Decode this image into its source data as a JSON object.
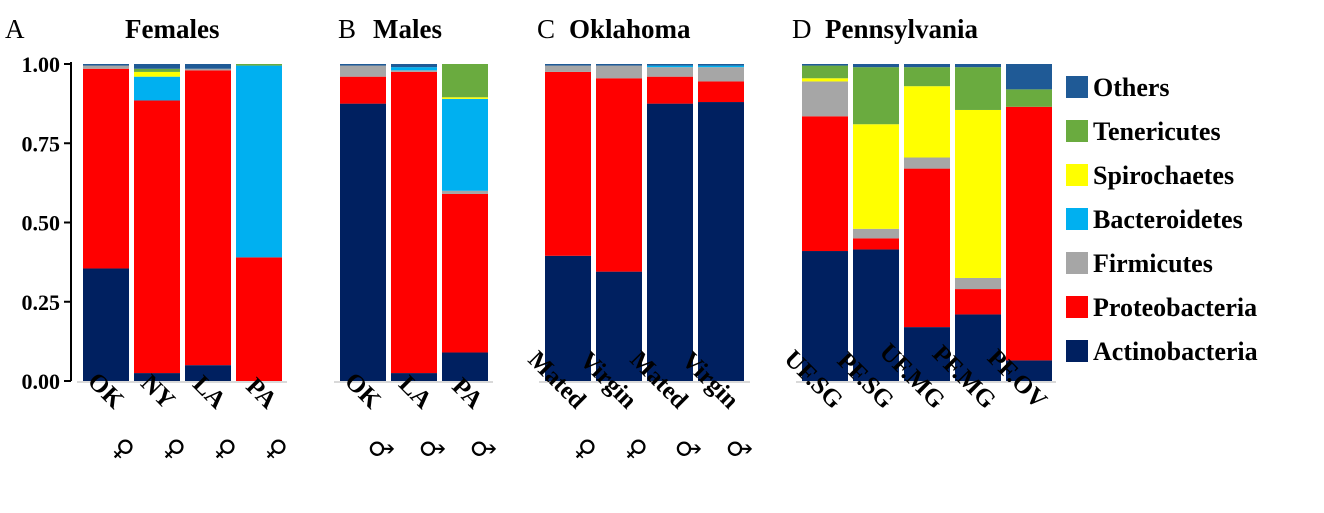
{
  "chart_data": {
    "type": "bar",
    "stacked": true,
    "ylim": [
      0,
      1
    ],
    "yticks": [
      "0.00",
      "0.25",
      "0.50",
      "0.75",
      "1.00"
    ],
    "legend_position": "right",
    "series": [
      {
        "name": "Others",
        "color": "#1f5a96"
      },
      {
        "name": "Tenericutes",
        "color": "#6aab3f"
      },
      {
        "name": "Spirochaetes",
        "color": "#ffff00"
      },
      {
        "name": "Bacteroidetes",
        "color": "#00b0f0"
      },
      {
        "name": "Firmicutes",
        "color": "#a6a6a6"
      },
      {
        "name": "Proteobacteria",
        "color": "#ff0000"
      },
      {
        "name": "Actinobacteria",
        "color": "#002060"
      }
    ],
    "stack_order": [
      "Actinobacteria",
      "Proteobacteria",
      "Firmicutes",
      "Bacteroidetes",
      "Spirochaetes",
      "Tenericutes",
      "Others"
    ],
    "panels": [
      {
        "letter": "A",
        "title": "Females",
        "bars": [
          {
            "label": "OK",
            "sex": "♀",
            "values": {
              "Actinobacteria": 0.355,
              "Proteobacteria": 0.63,
              "Firmicutes": 0.01,
              "Bacteroidetes": 0.0,
              "Spirochaetes": 0.0,
              "Tenericutes": 0.0,
              "Others": 0.005
            }
          },
          {
            "label": "NY",
            "sex": "♀",
            "values": {
              "Actinobacteria": 0.025,
              "Proteobacteria": 0.86,
              "Firmicutes": 0.0,
              "Bacteroidetes": 0.075,
              "Spirochaetes": 0.015,
              "Tenericutes": 0.01,
              "Others": 0.015
            }
          },
          {
            "label": "LA",
            "sex": "♀",
            "values": {
              "Actinobacteria": 0.05,
              "Proteobacteria": 0.93,
              "Firmicutes": 0.005,
              "Bacteroidetes": 0.0,
              "Spirochaetes": 0.0,
              "Tenericutes": 0.0,
              "Others": 0.015
            }
          },
          {
            "label": "PA",
            "sex": "♀",
            "values": {
              "Actinobacteria": 0.0,
              "Proteobacteria": 0.39,
              "Firmicutes": 0.0,
              "Bacteroidetes": 0.605,
              "Spirochaetes": 0.0,
              "Tenericutes": 0.005,
              "Others": 0.0
            }
          }
        ]
      },
      {
        "letter": "B",
        "title": "Males",
        "bars": [
          {
            "label": "OK",
            "sex": "♂",
            "values": {
              "Actinobacteria": 0.875,
              "Proteobacteria": 0.085,
              "Firmicutes": 0.035,
              "Bacteroidetes": 0.0,
              "Spirochaetes": 0.0,
              "Tenericutes": 0.0,
              "Others": 0.005
            }
          },
          {
            "label": "LA",
            "sex": "♂",
            "values": {
              "Actinobacteria": 0.025,
              "Proteobacteria": 0.95,
              "Firmicutes": 0.005,
              "Bacteroidetes": 0.01,
              "Spirochaetes": 0.0,
              "Tenericutes": 0.0,
              "Others": 0.01
            }
          },
          {
            "label": "PA",
            "sex": "♂",
            "values": {
              "Actinobacteria": 0.09,
              "Proteobacteria": 0.5,
              "Firmicutes": 0.01,
              "Bacteroidetes": 0.29,
              "Spirochaetes": 0.005,
              "Tenericutes": 0.105,
              "Others": 0.0
            }
          }
        ]
      },
      {
        "letter": "C",
        "title": "Oklahoma",
        "bars": [
          {
            "label": "Mated",
            "sex": "♀",
            "values": {
              "Actinobacteria": 0.395,
              "Proteobacteria": 0.58,
              "Firmicutes": 0.02,
              "Bacteroidetes": 0.0,
              "Spirochaetes": 0.0,
              "Tenericutes": 0.0,
              "Others": 0.005
            }
          },
          {
            "label": "Virgin",
            "sex": "♀",
            "values": {
              "Actinobacteria": 0.345,
              "Proteobacteria": 0.61,
              "Firmicutes": 0.04,
              "Bacteroidetes": 0.0,
              "Spirochaetes": 0.0,
              "Tenericutes": 0.0,
              "Others": 0.005
            }
          },
          {
            "label": "Mated",
            "sex": "♂",
            "values": {
              "Actinobacteria": 0.875,
              "Proteobacteria": 0.085,
              "Firmicutes": 0.03,
              "Bacteroidetes": 0.005,
              "Spirochaetes": 0.0,
              "Tenericutes": 0.0,
              "Others": 0.005
            }
          },
          {
            "label": "Virgin",
            "sex": "♂",
            "values": {
              "Actinobacteria": 0.88,
              "Proteobacteria": 0.065,
              "Firmicutes": 0.045,
              "Bacteroidetes": 0.005,
              "Spirochaetes": 0.0,
              "Tenericutes": 0.0,
              "Others": 0.005
            }
          }
        ]
      },
      {
        "letter": "D",
        "title": "Pennsylvania",
        "bars": [
          {
            "label": "UF.SG",
            "sex": "",
            "values": {
              "Actinobacteria": 0.41,
              "Proteobacteria": 0.425,
              "Firmicutes": 0.11,
              "Bacteroidetes": 0.0,
              "Spirochaetes": 0.01,
              "Tenericutes": 0.04,
              "Others": 0.005
            }
          },
          {
            "label": "PF.SG",
            "sex": "",
            "values": {
              "Actinobacteria": 0.415,
              "Proteobacteria": 0.035,
              "Firmicutes": 0.03,
              "Bacteroidetes": 0.0,
              "Spirochaetes": 0.33,
              "Tenericutes": 0.18,
              "Others": 0.01
            }
          },
          {
            "label": "UF.MG",
            "sex": "",
            "values": {
              "Actinobacteria": 0.17,
              "Proteobacteria": 0.5,
              "Firmicutes": 0.035,
              "Bacteroidetes": 0.0,
              "Spirochaetes": 0.225,
              "Tenericutes": 0.06,
              "Others": 0.01
            }
          },
          {
            "label": "PF.MG",
            "sex": "",
            "values": {
              "Actinobacteria": 0.21,
              "Proteobacteria": 0.08,
              "Firmicutes": 0.035,
              "Bacteroidetes": 0.0,
              "Spirochaetes": 0.53,
              "Tenericutes": 0.135,
              "Others": 0.01
            }
          },
          {
            "label": "PF.OV",
            "sex": "",
            "values": {
              "Actinobacteria": 0.065,
              "Proteobacteria": 0.8,
              "Firmicutes": 0.0,
              "Bacteroidetes": 0.0,
              "Spirochaetes": 0.0,
              "Tenericutes": 0.055,
              "Others": 0.08
            }
          }
        ]
      }
    ]
  }
}
